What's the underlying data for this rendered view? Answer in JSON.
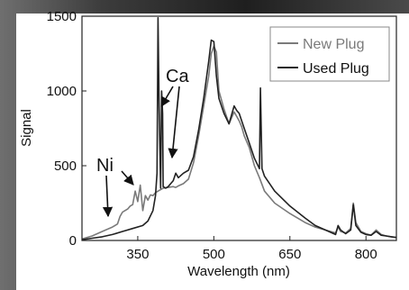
{
  "colors": {
    "background_photo": "#2a2a2a",
    "plot_bg": "#ffffff",
    "axes": "#222222"
  },
  "chart_data": {
    "type": "line",
    "title": "",
    "xlabel": "Wavelength (nm)",
    "ylabel": "Signal",
    "xlim": [
      240,
      860
    ],
    "ylim": [
      0,
      1500
    ],
    "xticks": [
      350,
      500,
      650,
      800
    ],
    "yticks": [
      0,
      500,
      1000,
      1500
    ],
    "grid": false,
    "legend_position": "top-right",
    "series": [
      {
        "name": "New Plug",
        "color": "#7a7a7a",
        "x": [
          240,
          260,
          280,
          300,
          310,
          315,
          320,
          325,
          330,
          335,
          340,
          345,
          350,
          355,
          360,
          365,
          370,
          375,
          380,
          385,
          390,
          395,
          400,
          410,
          420,
          425,
          430,
          440,
          450,
          460,
          470,
          480,
          490,
          495,
          500,
          505,
          510,
          520,
          530,
          540,
          550,
          555,
          560,
          570,
          580,
          590,
          600,
          620,
          650,
          680,
          700,
          720,
          740,
          745,
          750,
          760,
          770,
          775,
          780,
          790,
          800,
          810,
          820,
          830,
          840,
          850,
          860
        ],
        "y": [
          10,
          30,
          60,
          90,
          110,
          160,
          190,
          200,
          210,
          230,
          240,
          330,
          260,
          370,
          200,
          300,
          270,
          305,
          300,
          320,
          330,
          340,
          350,
          355,
          360,
          355,
          365,
          380,
          410,
          520,
          700,
          900,
          1100,
          1250,
          1300,
          1260,
          1000,
          880,
          780,
          860,
          800,
          760,
          700,
          620,
          500,
          420,
          330,
          250,
          180,
          120,
          90,
          70,
          50,
          90,
          60,
          50,
          80,
          250,
          120,
          60,
          45,
          35,
          70,
          40,
          30,
          25,
          20
        ]
      },
      {
        "name": "Used Plug",
        "color": "#222222",
        "x": [
          240,
          260,
          280,
          300,
          320,
          340,
          360,
          370,
          380,
          385,
          388,
          390,
          392,
          395,
          397,
          399,
          400,
          405,
          410,
          415,
          420,
          425,
          430,
          440,
          450,
          460,
          470,
          480,
          490,
          495,
          500,
          505,
          510,
          520,
          530,
          540,
          545,
          550,
          555,
          560,
          570,
          580,
          590,
          592,
          595,
          600,
          620,
          650,
          680,
          700,
          720,
          740,
          745,
          750,
          760,
          770,
          775,
          780,
          790,
          800,
          810,
          820,
          830,
          840,
          850,
          860
        ],
        "y": [
          5,
          15,
          25,
          40,
          60,
          80,
          100,
          130,
          200,
          300,
          450,
          1490,
          900,
          350,
          1000,
          850,
          360,
          350,
          360,
          380,
          400,
          450,
          420,
          450,
          470,
          560,
          740,
          950,
          1200,
          1340,
          1330,
          1100,
          950,
          850,
          780,
          900,
          870,
          850,
          800,
          750,
          650,
          550,
          480,
          1020,
          480,
          430,
          330,
          230,
          150,
          100,
          70,
          40,
          100,
          70,
          45,
          70,
          240,
          100,
          55,
          40,
          35,
          60,
          35,
          30,
          25,
          20
        ]
      }
    ],
    "annotations": [
      {
        "label": "Ni"
      },
      {
        "label": "Ca"
      }
    ]
  }
}
